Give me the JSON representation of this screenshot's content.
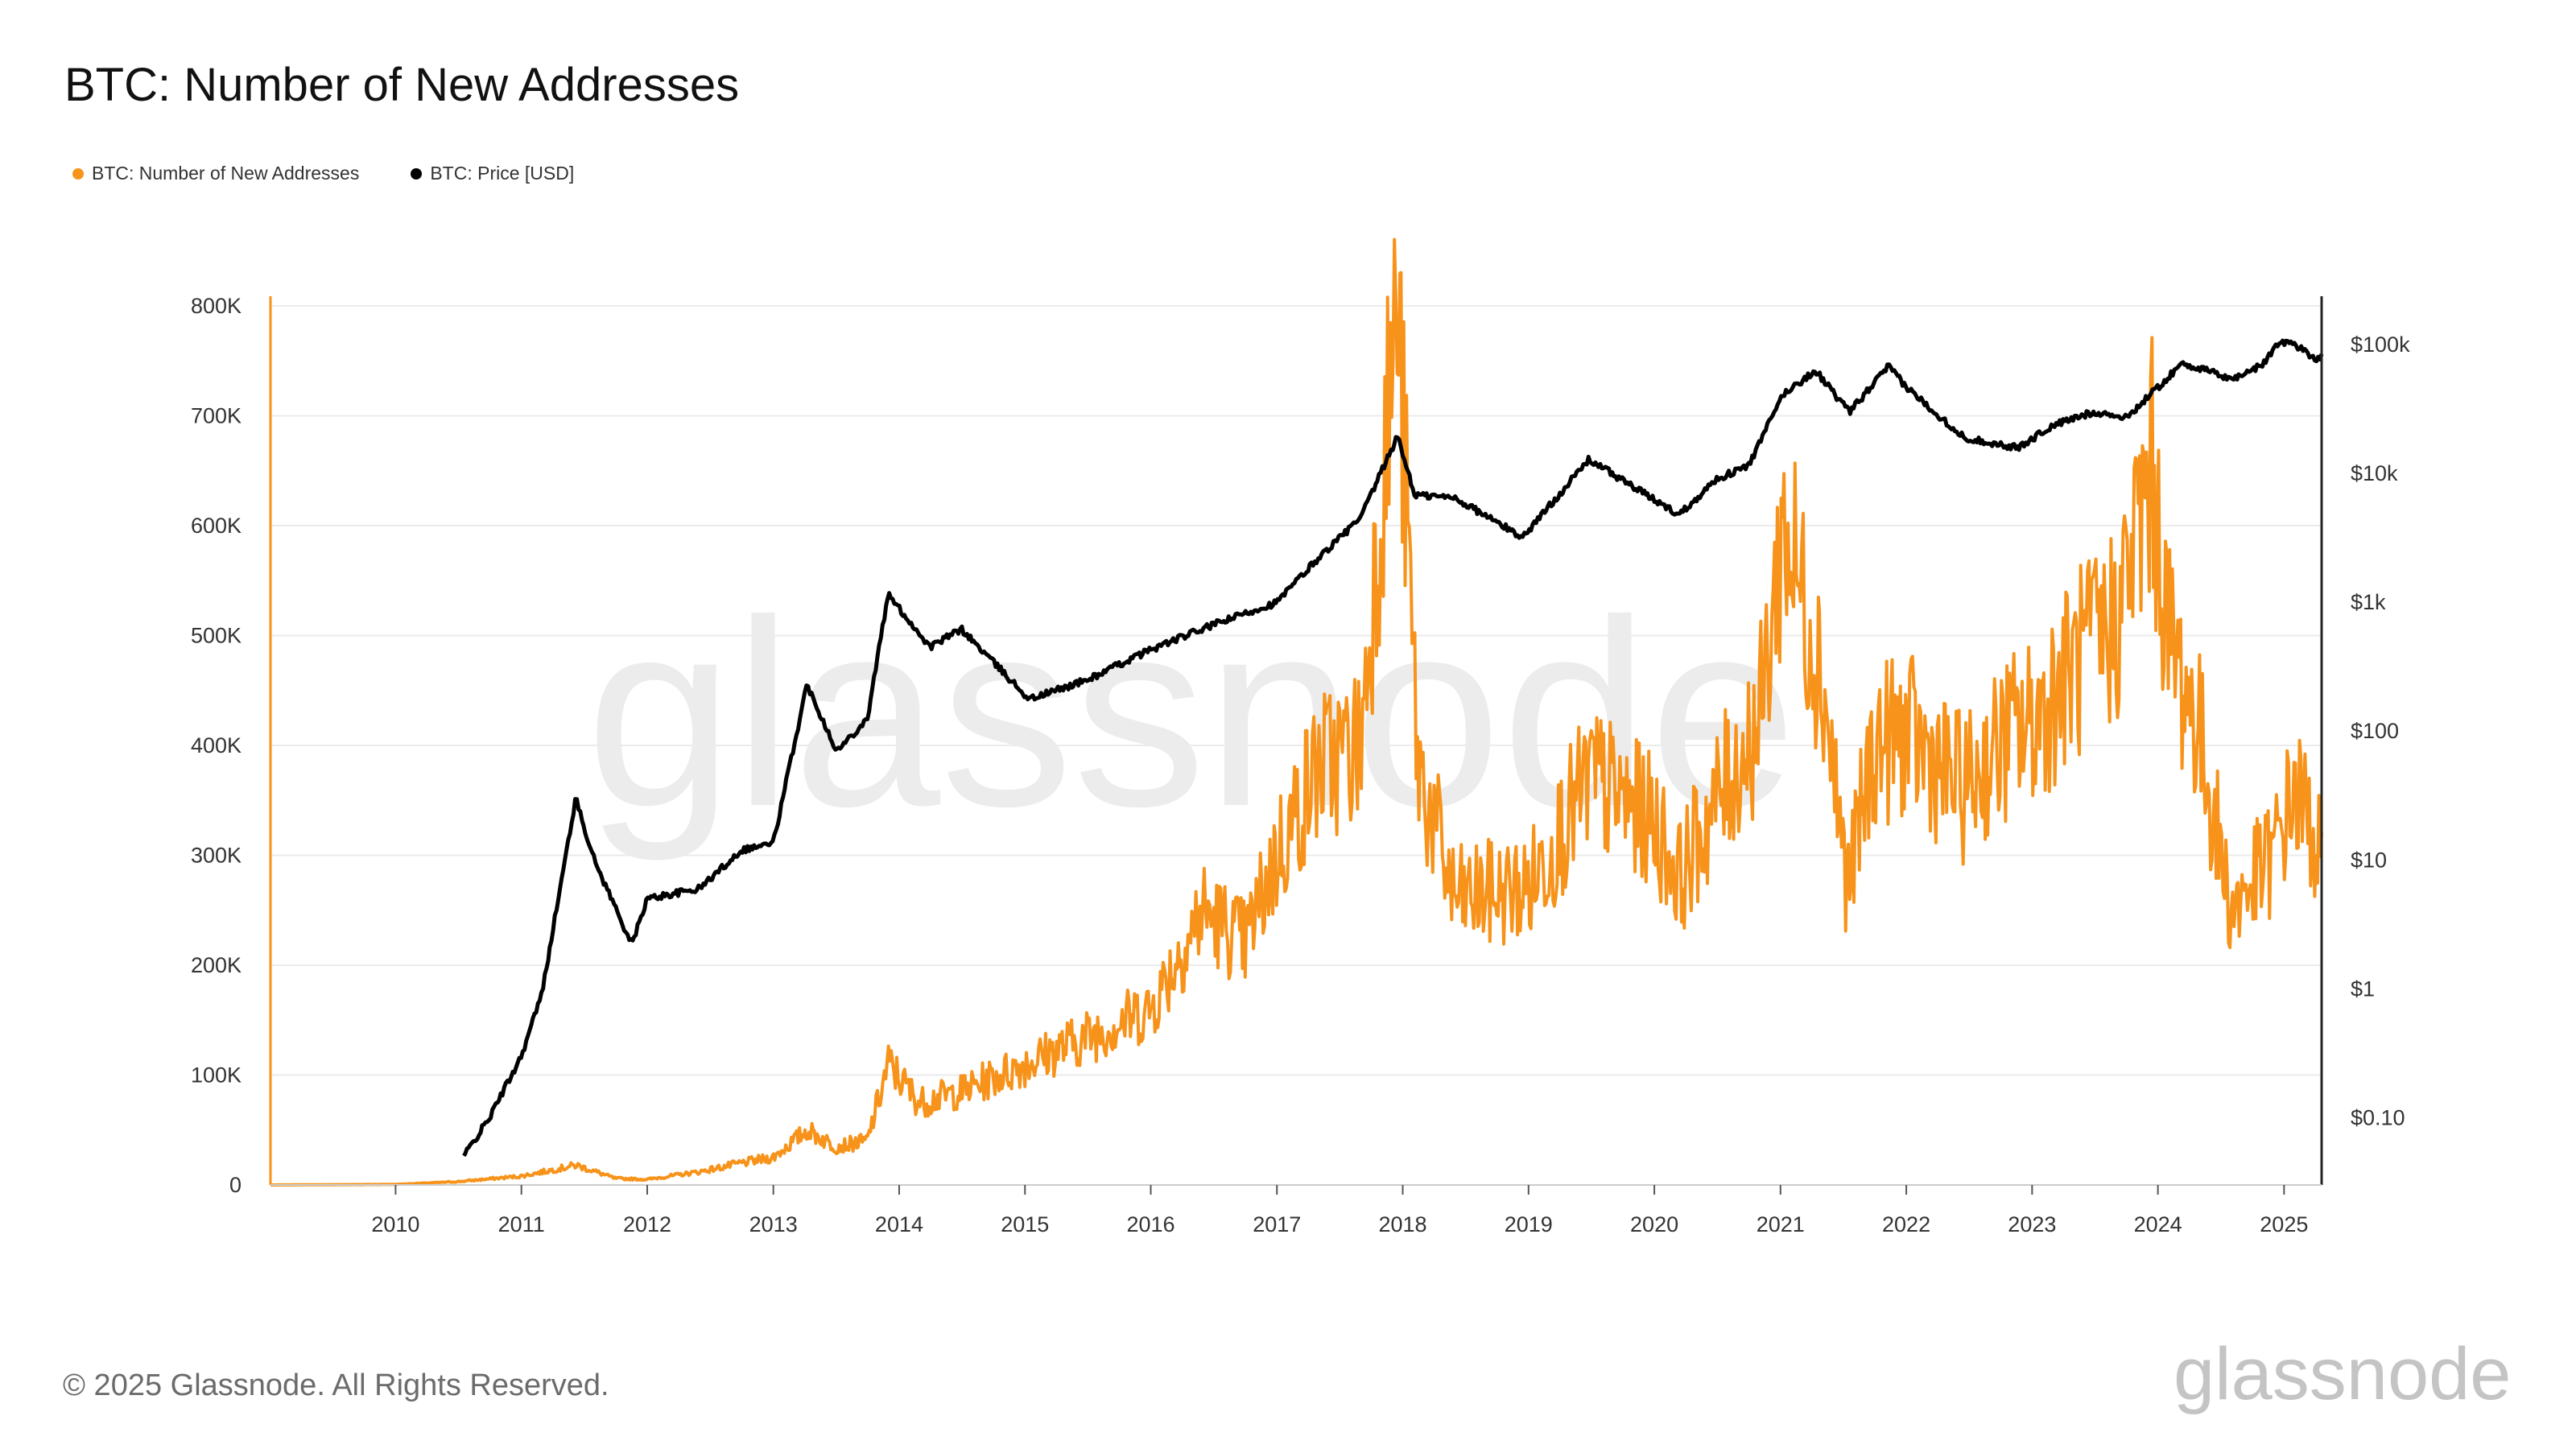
{
  "title": "BTC: Number of New Addresses",
  "legend": [
    {
      "label": "BTC: Number of New Addresses",
      "color": "#f7931a"
    },
    {
      "label": "BTC: Price [USD]",
      "color": "#000000"
    }
  ],
  "footer": "© 2025 Glassnode. All Rights Reserved.",
  "watermark": "glassnode",
  "logo_text": "glassnode",
  "chart_data": {
    "type": "line",
    "title": "BTC: Number of New Addresses",
    "grid": true,
    "legend_position": "top-left",
    "x_axis": {
      "type": "date",
      "range": [
        "2009-01-03",
        "2025-04-20"
      ],
      "ticks": [
        "2010",
        "2011",
        "2012",
        "2013",
        "2014",
        "2015",
        "2016",
        "2017",
        "2018",
        "2019",
        "2020",
        "2021",
        "2022",
        "2023",
        "2024",
        "2025"
      ]
    },
    "y_left": {
      "label": "",
      "range": [
        0,
        800000
      ],
      "ticks": [
        "0",
        "100K",
        "200K",
        "300K",
        "400K",
        "500K",
        "600K",
        "700K",
        "800K"
      ]
    },
    "y_right": {
      "label": "",
      "scale": "log",
      "range": [
        0.03,
        200000
      ],
      "ticks": [
        "$0.10",
        "$1",
        "$10",
        "$100",
        "$1k",
        "$10k",
        "$100k"
      ]
    },
    "series": [
      {
        "name": "BTC: Number of New Addresses",
        "axis": "left",
        "color": "#f7931a",
        "x": [
          "2009-01-03",
          "2010-01-01",
          "2010-07-01",
          "2011-01-01",
          "2011-06-10",
          "2011-10-01",
          "2012-01-01",
          "2012-06-01",
          "2012-10-01",
          "2013-01-01",
          "2013-04-10",
          "2013-07-01",
          "2013-10-01",
          "2013-12-01",
          "2014-03-01",
          "2014-07-01",
          "2015-01-01",
          "2015-07-01",
          "2016-01-01",
          "2016-06-01",
          "2016-10-01",
          "2017-01-01",
          "2017-05-01",
          "2017-09-01",
          "2017-12-17",
          "2018-02-15",
          "2018-06-01",
          "2019-01-01",
          "2019-07-01",
          "2020-01-01",
          "2020-03-15",
          "2020-07-01",
          "2020-11-01",
          "2021-01-10",
          "2021-05-01",
          "2021-07-15",
          "2021-10-01",
          "2022-01-01",
          "2022-06-15",
          "2022-11-01",
          "2023-01-01",
          "2023-05-01",
          "2023-09-01",
          "2023-12-15",
          "2024-02-01",
          "2024-05-01",
          "2024-08-01",
          "2024-12-01",
          "2025-02-01",
          "2025-04-20"
        ],
        "values": [
          0,
          500,
          3000,
          8000,
          18000,
          6000,
          5000,
          12000,
          20000,
          25000,
          50000,
          35000,
          40000,
          110000,
          75000,
          85000,
          110000,
          135000,
          160000,
          250000,
          220000,
          300000,
          380000,
          400000,
          800000,
          380000,
          260000,
          270000,
          370000,
          330000,
          280000,
          350000,
          420000,
          600000,
          470000,
          270000,
          400000,
          410000,
          360000,
          410000,
          420000,
          470000,
          510000,
          650000,
          500000,
          410000,
          250000,
          300000,
          360000,
          300000
        ]
      },
      {
        "name": "BTC: Price [USD]",
        "axis": "right",
        "color": "#000000",
        "x": [
          "2010-07-18",
          "2010-10-01",
          "2011-01-01",
          "2011-03-01",
          "2011-06-08",
          "2011-08-01",
          "2011-11-18",
          "2012-01-01",
          "2012-06-01",
          "2012-10-01",
          "2013-01-01",
          "2013-04-09",
          "2013-07-05",
          "2013-10-01",
          "2013-11-30",
          "2014-04-01",
          "2014-07-01",
          "2015-01-14",
          "2015-07-01",
          "2016-01-01",
          "2016-07-01",
          "2017-01-01",
          "2017-05-01",
          "2017-09-01",
          "2017-12-17",
          "2018-02-06",
          "2018-06-01",
          "2018-12-15",
          "2019-06-26",
          "2019-12-18",
          "2020-03-13",
          "2020-07-01",
          "2020-10-01",
          "2021-01-08",
          "2021-04-14",
          "2021-07-20",
          "2021-11-10",
          "2022-01-01",
          "2022-06-18",
          "2022-11-21",
          "2023-03-01",
          "2023-07-01",
          "2023-10-01",
          "2024-03-14",
          "2024-08-05",
          "2024-11-01",
          "2024-12-17",
          "2025-02-01",
          "2025-04-08",
          "2025-04-20"
        ],
        "values": [
          0.05,
          0.1,
          0.3,
          0.9,
          30,
          10,
          2.2,
          5,
          6,
          12,
          13.5,
          230,
          70,
          125,
          1150,
          450,
          620,
          177,
          250,
          430,
          670,
          1000,
          2200,
          4500,
          19500,
          6800,
          6500,
          3200,
          12900,
          6600,
          4800,
          9100,
          11500,
          41000,
          63000,
          29800,
          68000,
          47000,
          19000,
          15800,
          23500,
          30200,
          27000,
          72000,
          54000,
          70000,
          106000,
          101000,
          76300,
          85000
        ]
      }
    ]
  }
}
